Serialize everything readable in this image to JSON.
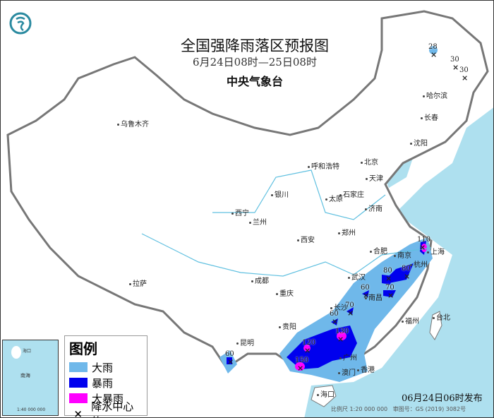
{
  "header": {
    "title": "全国强降雨落区预报图",
    "period": "6月24日08时—25日08时",
    "issuer": "中央气象台",
    "logo_icon": "cma-logo-icon"
  },
  "colors": {
    "heavy_rain": "#6fb8ea",
    "rainstorm": "#0000ee",
    "heavy_rainstorm": "#ff00ff",
    "sea": "#aee0ef",
    "border": "#777777"
  },
  "legend": {
    "title": "图例",
    "items": [
      {
        "label": "大雨",
        "color": "#6fb8ea"
      },
      {
        "label": "暴雨",
        "color": "#0000ee"
      },
      {
        "label": "大暴雨",
        "color": "#ff00ff"
      },
      {
        "label": "降水中心值",
        "symbol": "×"
      }
    ]
  },
  "cities": [
    "乌鲁木齐",
    "哈尔滨",
    "长春",
    "沈阳",
    "北京",
    "天津",
    "呼和浩特",
    "石家庄",
    "太原",
    "济南",
    "银川",
    "西宁",
    "兰州",
    "郑州",
    "西安",
    "合肥",
    "南京",
    "上海",
    "杭州",
    "武汉",
    "成都",
    "拉萨",
    "重庆",
    "长沙",
    "南昌",
    "贵阳",
    "福州",
    "台北",
    "昆明",
    "广州",
    "香港",
    "澳门",
    "海口"
  ],
  "rain_centers": [
    "28",
    "30",
    "30",
    "110",
    "80",
    "80",
    "70",
    "60",
    "70",
    "60",
    "130",
    "120",
    "150",
    "60"
  ],
  "inset": {
    "labels": [
      "海口",
      "南海",
      "1:40 000 000"
    ]
  },
  "footer": {
    "published": "06月24日06时发布",
    "scale": "比例尺 1:20 000 000",
    "approval": "审图号：GS (2019) 3082号"
  }
}
